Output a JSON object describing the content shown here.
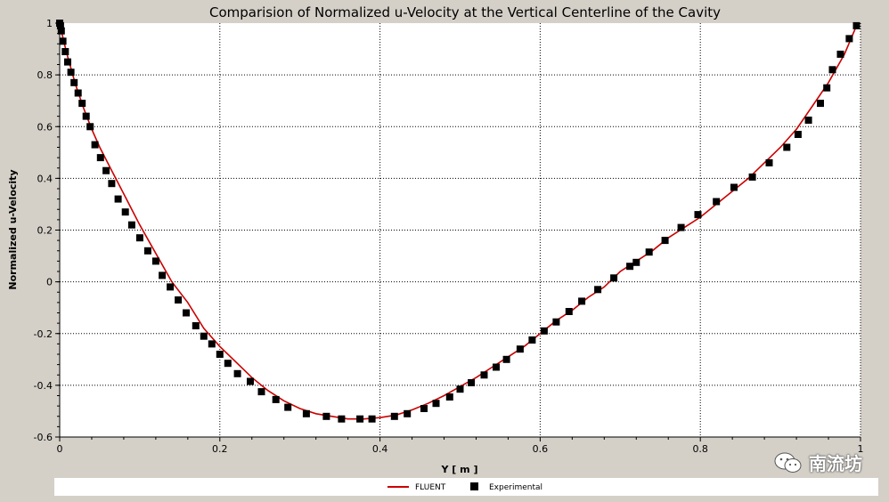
{
  "chart_data": {
    "type": "line+scatter",
    "title": "Comparision of Normalized u-Velocity at the Vertical Centerline of the Cavity",
    "xlabel": "Y [ m ]",
    "ylabel": "Normalized u-Velocity",
    "xlim": [
      0,
      1
    ],
    "ylim": [
      -0.6,
      1
    ],
    "xticks": [
      0,
      0.2,
      0.4,
      0.6,
      0.8,
      1
    ],
    "xtick_labels": [
      "0",
      "0.2",
      "0.4",
      "0.6",
      "0.8",
      "1"
    ],
    "yticks": [
      -0.6,
      -0.4,
      -0.2,
      0,
      0.2,
      0.4,
      0.6,
      0.8,
      1
    ],
    "ytick_labels": [
      "-0.6",
      "-0.4",
      "-0.2",
      "0",
      "0.2",
      "0.4",
      "0.6",
      "0.8",
      "1"
    ],
    "grid": true,
    "legend_position": "bottom",
    "series": [
      {
        "name": "FLUENT",
        "kind": "line",
        "color": "#cc0000",
        "x": [
          0,
          0.005,
          0.01,
          0.02,
          0.03,
          0.04,
          0.05,
          0.06,
          0.07,
          0.08,
          0.1,
          0.12,
          0.14,
          0.16,
          0.18,
          0.2,
          0.22,
          0.24,
          0.26,
          0.28,
          0.3,
          0.32,
          0.34,
          0.36,
          0.38,
          0.4,
          0.42,
          0.44,
          0.46,
          0.48,
          0.5,
          0.52,
          0.54,
          0.56,
          0.58,
          0.6,
          0.62,
          0.64,
          0.66,
          0.68,
          0.7,
          0.72,
          0.74,
          0.76,
          0.78,
          0.8,
          0.82,
          0.84,
          0.86,
          0.88,
          0.9,
          0.92,
          0.94,
          0.96,
          0.98,
          0.995
        ],
        "y": [
          1.0,
          0.93,
          0.87,
          0.76,
          0.67,
          0.59,
          0.52,
          0.46,
          0.4,
          0.34,
          0.22,
          0.11,
          0.0,
          -0.08,
          -0.18,
          -0.25,
          -0.31,
          -0.37,
          -0.42,
          -0.46,
          -0.49,
          -0.51,
          -0.52,
          -0.53,
          -0.53,
          -0.525,
          -0.515,
          -0.495,
          -0.47,
          -0.44,
          -0.405,
          -0.37,
          -0.33,
          -0.29,
          -0.25,
          -0.2,
          -0.15,
          -0.11,
          -0.06,
          -0.02,
          0.04,
          0.08,
          0.12,
          0.17,
          0.21,
          0.25,
          0.3,
          0.35,
          0.4,
          0.46,
          0.52,
          0.59,
          0.68,
          0.77,
          0.88,
          0.99
        ]
      },
      {
        "name": "Experimental",
        "kind": "scatter",
        "color": "#000000",
        "x": [
          0.0,
          0.001,
          0.002,
          0.004,
          0.007,
          0.01,
          0.014,
          0.018,
          0.023,
          0.028,
          0.033,
          0.038,
          0.044,
          0.051,
          0.058,
          0.065,
          0.073,
          0.082,
          0.09,
          0.1,
          0.11,
          0.12,
          0.128,
          0.138,
          0.148,
          0.158,
          0.17,
          0.18,
          0.19,
          0.2,
          0.21,
          0.222,
          0.238,
          0.252,
          0.27,
          0.285,
          0.308,
          0.333,
          0.352,
          0.375,
          0.39,
          0.418,
          0.434,
          0.455,
          0.47,
          0.487,
          0.5,
          0.514,
          0.53,
          0.545,
          0.558,
          0.575,
          0.59,
          0.605,
          0.62,
          0.636,
          0.652,
          0.672,
          0.692,
          0.712,
          0.72,
          0.736,
          0.756,
          0.776,
          0.797,
          0.82,
          0.842,
          0.865,
          0.886,
          0.908,
          0.922,
          0.935,
          0.95,
          0.958,
          0.965,
          0.975,
          0.986,
          0.995
        ],
        "y": [
          1.0,
          0.99,
          0.97,
          0.93,
          0.89,
          0.85,
          0.81,
          0.77,
          0.73,
          0.69,
          0.64,
          0.6,
          0.53,
          0.48,
          0.43,
          0.38,
          0.32,
          0.27,
          0.22,
          0.17,
          0.12,
          0.08,
          0.025,
          -0.02,
          -0.07,
          -0.12,
          -0.17,
          -0.21,
          -0.24,
          -0.28,
          -0.315,
          -0.355,
          -0.385,
          -0.425,
          -0.455,
          -0.485,
          -0.51,
          -0.52,
          -0.53,
          -0.53,
          -0.53,
          -0.52,
          -0.51,
          -0.49,
          -0.47,
          -0.445,
          -0.415,
          -0.39,
          -0.36,
          -0.33,
          -0.3,
          -0.26,
          -0.225,
          -0.19,
          -0.155,
          -0.115,
          -0.075,
          -0.03,
          0.015,
          0.06,
          0.075,
          0.115,
          0.16,
          0.21,
          0.26,
          0.31,
          0.365,
          0.405,
          0.46,
          0.52,
          0.57,
          0.625,
          0.69,
          0.75,
          0.82,
          0.88,
          0.94,
          0.99
        ]
      }
    ]
  },
  "watermark": {
    "text": "南流坊",
    "icon": "wechat-logo-icon"
  },
  "colors": {
    "background": "#d4d0c8",
    "plot_background": "#ffffff",
    "legend_background": "#ffffff",
    "fluent_line": "#cc0000",
    "marker": "#000000"
  }
}
